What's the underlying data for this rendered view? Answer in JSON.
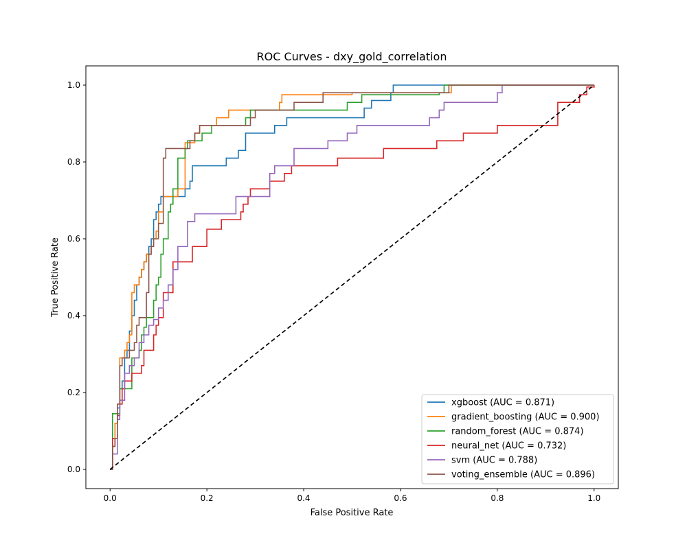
{
  "chart_data": {
    "type": "line",
    "title": "ROC Curves - dxy_gold_correlation",
    "xlabel": "False Positive Rate",
    "ylabel": "True Positive Rate",
    "xlim": [
      -0.05,
      1.05
    ],
    "ylim": [
      -0.05,
      1.05
    ],
    "xticks": [
      "0.0",
      "0.2",
      "0.4",
      "0.6",
      "0.8",
      "1.0"
    ],
    "yticks": [
      "0.0",
      "0.2",
      "0.4",
      "0.6",
      "0.8",
      "1.0"
    ],
    "grid": false,
    "legend_position": "lower-right",
    "diagonal": {
      "x": [
        0,
        1
      ],
      "y": [
        0,
        1
      ],
      "color": "#000000",
      "style": "dashed"
    },
    "series": [
      {
        "name": "xgboost (AUC = 0.871)",
        "color": "#1f77b4",
        "x": [
          0,
          0.005,
          0.01,
          0.015,
          0.02,
          0.025,
          0.03,
          0.035,
          0.04,
          0.045,
          0.05,
          0.055,
          0.06,
          0.065,
          0.07,
          0.075,
          0.08,
          0.085,
          0.09,
          0.095,
          0.1,
          0.105,
          0.11,
          0.14,
          0.155,
          0.165,
          0.17,
          0.21,
          0.24,
          0.26,
          0.265,
          0.275,
          0.28,
          0.31,
          0.335,
          0.34,
          0.36,
          0.365,
          0.52,
          0.525,
          0.535,
          0.54,
          0.58,
          0.585,
          0.68,
          1.0
        ],
        "y": [
          0,
          0.06,
          0.12,
          0.16,
          0.21,
          0.23,
          0.29,
          0.31,
          0.36,
          0.4,
          0.44,
          0.48,
          0.5,
          0.52,
          0.54,
          0.56,
          0.58,
          0.6,
          0.65,
          0.67,
          0.69,
          0.71,
          0.71,
          0.71,
          0.73,
          0.75,
          0.79,
          0.79,
          0.81,
          0.81,
          0.83,
          0.83,
          0.875,
          0.875,
          0.875,
          0.895,
          0.895,
          0.915,
          0.915,
          0.94,
          0.94,
          0.96,
          0.98,
          1.0,
          1.0,
          1.0
        ]
      },
      {
        "name": "gradient_boosting (AUC = 0.900)",
        "color": "#ff7f0e",
        "x": [
          0,
          0.005,
          0.01,
          0.015,
          0.02,
          0.03,
          0.035,
          0.04,
          0.045,
          0.05,
          0.055,
          0.06,
          0.065,
          0.07,
          0.075,
          0.085,
          0.09,
          0.095,
          0.1,
          0.11,
          0.13,
          0.14,
          0.155,
          0.16,
          0.175,
          0.185,
          0.2,
          0.22,
          0.245,
          0.27,
          0.35,
          0.355,
          0.36,
          0.44,
          0.49,
          0.5,
          0.7,
          0.705,
          1.0
        ],
        "y": [
          0,
          0.06,
          0.12,
          0.17,
          0.29,
          0.31,
          0.33,
          0.35,
          0.46,
          0.48,
          0.48,
          0.5,
          0.52,
          0.54,
          0.56,
          0.58,
          0.6,
          0.62,
          0.67,
          0.71,
          0.71,
          0.73,
          0.85,
          0.85,
          0.875,
          0.895,
          0.895,
          0.915,
          0.935,
          0.935,
          0.955,
          0.975,
          0.975,
          0.975,
          0.975,
          0.98,
          0.98,
          1.0,
          1.0
        ]
      },
      {
        "name": "random_forest (AUC = 0.874)",
        "color": "#2ca02c",
        "x": [
          0,
          0.005,
          0.02,
          0.03,
          0.045,
          0.05,
          0.06,
          0.065,
          0.07,
          0.075,
          0.085,
          0.09,
          0.095,
          0.1,
          0.105,
          0.11,
          0.12,
          0.125,
          0.13,
          0.135,
          0.14,
          0.155,
          0.16,
          0.19,
          0.21,
          0.25,
          0.28,
          0.29,
          0.295,
          0.34,
          0.49,
          0.52,
          0.68,
          0.69,
          1.0
        ],
        "y": [
          0,
          0.145,
          0.21,
          0.21,
          0.29,
          0.29,
          0.31,
          0.35,
          0.37,
          0.395,
          0.395,
          0.44,
          0.48,
          0.5,
          0.56,
          0.6,
          0.67,
          0.69,
          0.73,
          0.73,
          0.81,
          0.835,
          0.855,
          0.875,
          0.895,
          0.895,
          0.915,
          0.935,
          0.935,
          0.935,
          0.955,
          0.975,
          0.98,
          1.0,
          1.0
        ]
      },
      {
        "name": "neural_net (AUC = 0.732)",
        "color": "#d62728",
        "x": [
          0,
          0.005,
          0.015,
          0.02,
          0.025,
          0.03,
          0.045,
          0.065,
          0.07,
          0.09,
          0.095,
          0.1,
          0.11,
          0.13,
          0.14,
          0.17,
          0.2,
          0.23,
          0.27,
          0.275,
          0.285,
          0.29,
          0.32,
          0.33,
          0.34,
          0.36,
          0.375,
          0.4,
          0.445,
          0.47,
          0.51,
          0.565,
          0.675,
          0.73,
          0.8,
          0.925,
          0.96,
          0.97,
          0.985,
          1.0
        ],
        "y": [
          0,
          0.08,
          0.14,
          0.17,
          0.21,
          0.23,
          0.25,
          0.27,
          0.31,
          0.35,
          0.375,
          0.395,
          0.46,
          0.54,
          0.54,
          0.58,
          0.625,
          0.65,
          0.67,
          0.69,
          0.71,
          0.73,
          0.73,
          0.75,
          0.75,
          0.77,
          0.79,
          0.79,
          0.79,
          0.81,
          0.81,
          0.835,
          0.855,
          0.875,
          0.895,
          0.955,
          0.955,
          0.975,
          0.995,
          1.0
        ]
      },
      {
        "name": "svm (AUC = 0.788)",
        "color": "#9467bd",
        "x": [
          0,
          0.005,
          0.015,
          0.02,
          0.03,
          0.04,
          0.05,
          0.06,
          0.07,
          0.08,
          0.09,
          0.1,
          0.11,
          0.12,
          0.13,
          0.14,
          0.16,
          0.175,
          0.2,
          0.26,
          0.3,
          0.33,
          0.34,
          0.36,
          0.38,
          0.42,
          0.45,
          0.49,
          0.5,
          0.51,
          0.66,
          0.68,
          0.69,
          0.8,
          0.81,
          1.0
        ],
        "y": [
          0,
          0.04,
          0.13,
          0.18,
          0.25,
          0.27,
          0.29,
          0.33,
          0.35,
          0.375,
          0.39,
          0.42,
          0.44,
          0.48,
          0.52,
          0.58,
          0.645,
          0.665,
          0.665,
          0.71,
          0.71,
          0.77,
          0.79,
          0.79,
          0.835,
          0.835,
          0.855,
          0.875,
          0.875,
          0.895,
          0.915,
          0.935,
          0.955,
          0.98,
          1.0,
          1.0
        ]
      },
      {
        "name": "voting_ensemble (AUC = 0.896)",
        "color": "#8c564b",
        "x": [
          0,
          0.005,
          0.01,
          0.015,
          0.02,
          0.025,
          0.04,
          0.05,
          0.055,
          0.06,
          0.065,
          0.075,
          0.08,
          0.085,
          0.09,
          0.1,
          0.11,
          0.115,
          0.16,
          0.165,
          0.175,
          0.185,
          0.2,
          0.29,
          0.3,
          0.38,
          0.44,
          0.5,
          0.68,
          0.7,
          0.95,
          1.0
        ],
        "y": [
          0,
          0.06,
          0.08,
          0.17,
          0.27,
          0.29,
          0.31,
          0.33,
          0.375,
          0.395,
          0.395,
          0.46,
          0.56,
          0.58,
          0.6,
          0.64,
          0.81,
          0.835,
          0.835,
          0.855,
          0.875,
          0.895,
          0.895,
          0.915,
          0.935,
          0.955,
          0.98,
          0.98,
          0.98,
          1.0,
          1.0,
          1.0
        ]
      }
    ]
  }
}
